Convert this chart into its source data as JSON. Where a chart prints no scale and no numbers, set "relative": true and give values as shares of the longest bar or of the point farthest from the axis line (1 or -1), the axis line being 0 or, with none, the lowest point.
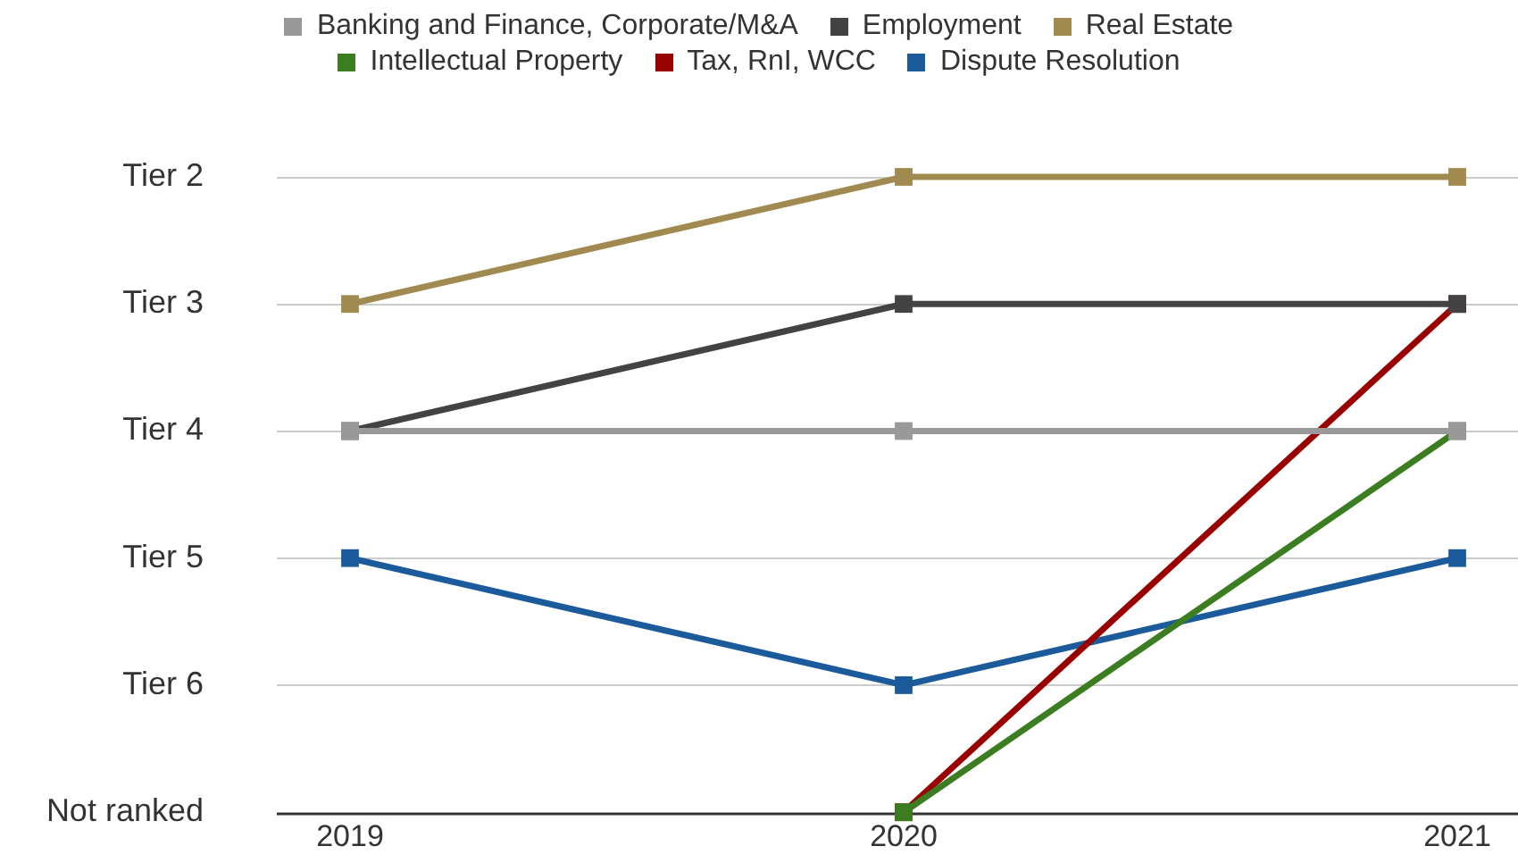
{
  "chart_data": {
    "type": "line",
    "categories": [
      "2019",
      "2020",
      "2021"
    ],
    "relative": true,
    "series": [
      {
        "name": "Banking and Finance, Corporate/M&A",
        "color": "#999999",
        "values": [
          0.6,
          0.6,
          0.6
        ]
      },
      {
        "name": "Employment",
        "color": "#434343",
        "values": [
          0.6,
          0.8,
          0.8
        ]
      },
      {
        "name": "Real Estate",
        "color": "#a08a4f",
        "values": [
          0.8,
          1,
          1
        ]
      },
      {
        "name": "Intellectual Property",
        "color": "#3c7d22",
        "values": [
          null,
          0,
          0.6
        ]
      },
      {
        "name": "Tax, RnI, WCC",
        "color": "#990000",
        "values": [
          null,
          0,
          0.8
        ]
      },
      {
        "name": "Dispute Resolution",
        "color": "#1c5b9b",
        "values": [
          0.4,
          0.2,
          0.4
        ]
      }
    ],
    "annotations": [
      "Tier 2",
      "Tier 3",
      "Tier 4",
      "Tier 5",
      "Tier 6",
      "Not ranked"
    ],
    "grid": "y",
    "legend": "top",
    "marker": "square",
    "line_style": "solid"
  }
}
